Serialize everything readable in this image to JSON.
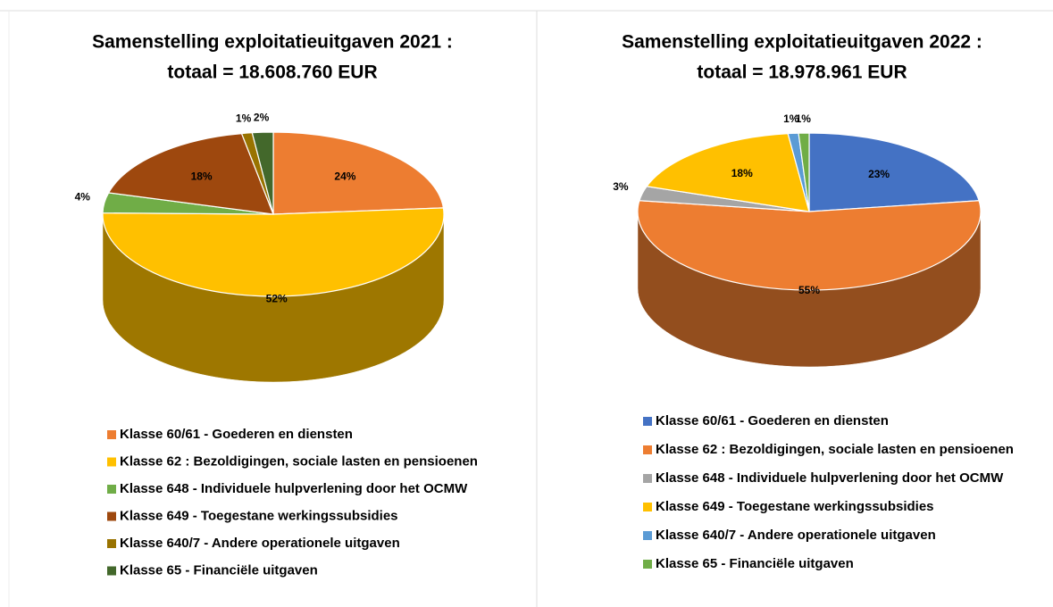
{
  "chart_data": [
    {
      "type": "pie",
      "title": "Samenstelling exploitatieuitgaven 2021 :",
      "subtitle": "totaal = 18.608.760 EUR",
      "categories": [
        "Klasse 60/61 - Goederen en diensten",
        "Klasse 62 : Bezoldigingen, sociale lasten en pensioenen",
        "Klasse 648 - Individuele hulpverlening door het OCMW",
        "Klasse 649 - Toegestane werkingssubsidies",
        "Klasse 640/7 - Andere operationele uitgaven",
        "Klasse 65 - Financiële uitgaven"
      ],
      "values": [
        24,
        52,
        4,
        18,
        1,
        2
      ],
      "value_labels": [
        "24%",
        "52%",
        "4%",
        "18%",
        "1%",
        "2%"
      ],
      "colors": [
        "#ED7D31",
        "#FFC000",
        "#70AD47",
        "#9E480E",
        "#997300",
        "#43682B"
      ]
    },
    {
      "type": "pie",
      "title": "Samenstelling exploitatieuitgaven 2022 :",
      "subtitle": "totaal = 18.978.961 EUR",
      "categories": [
        "Klasse 60/61 - Goederen en diensten",
        "Klasse 62 : Bezoldigingen, sociale lasten en pensioenen",
        "Klasse 648 - Individuele hulpverlening door het OCMW",
        "Klasse 649 - Toegestane werkingssubsidies",
        "Klasse 640/7 - Andere operationele uitgaven",
        "Klasse 65 - Financiële uitgaven"
      ],
      "values": [
        23,
        55,
        3,
        18,
        1,
        1
      ],
      "value_labels": [
        "23%",
        "55%",
        "3%",
        "18%",
        "1%",
        "1%"
      ],
      "colors": [
        "#4472C4",
        "#ED7D31",
        "#A5A5A5",
        "#FFC000",
        "#5B9BD5",
        "#70AD47"
      ]
    }
  ]
}
